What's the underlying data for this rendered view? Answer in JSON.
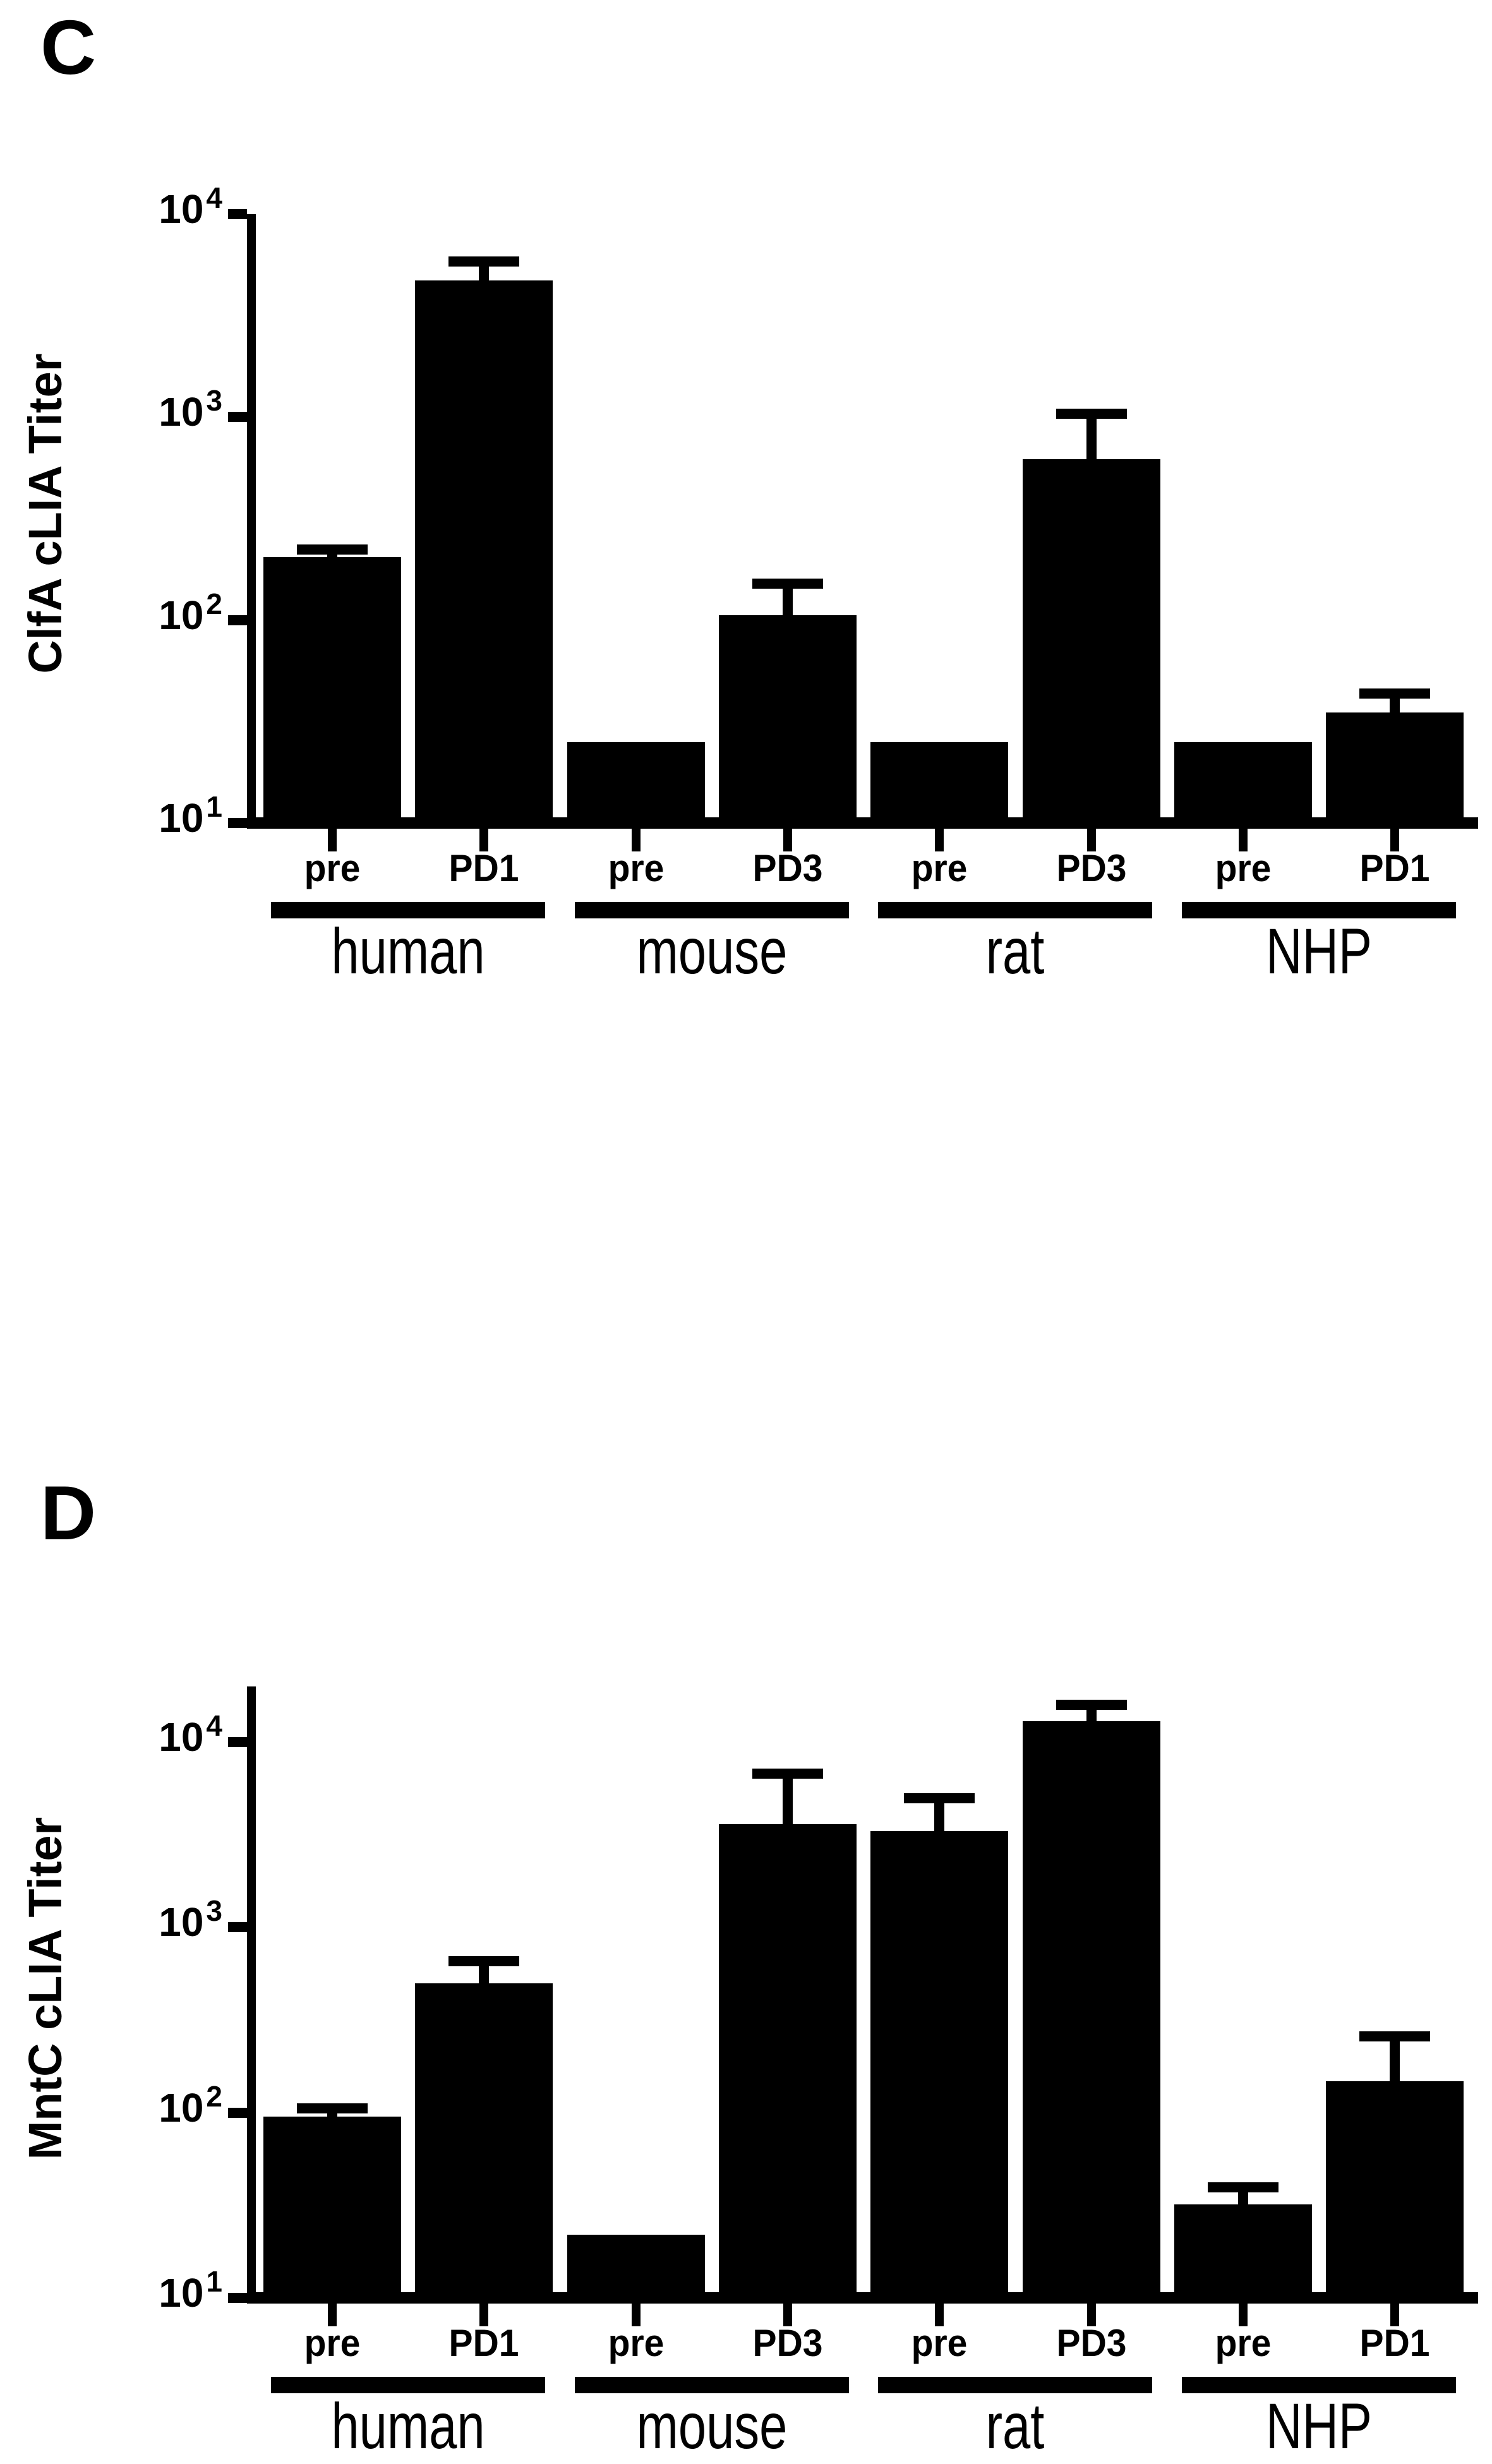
{
  "figure": {
    "description": "Two stacked log-scale bar charts of cLIA antibody titers with SD error bars"
  },
  "chart_data": [
    {
      "panel": "C",
      "letter": "C",
      "type": "bar",
      "title": "",
      "xlabel": "",
      "ylabel": "ClfA cLIA Titer",
      "yscale": "log",
      "ylim": [
        10,
        10000
      ],
      "axis_top": 10000,
      "grid": false,
      "legend": "none",
      "bar_color": "#000000",
      "yticks": [
        {
          "text": "10",
          "exp": "1",
          "value": 10
        },
        {
          "text": "10",
          "exp": "2",
          "value": 100
        },
        {
          "text": "10",
          "exp": "3",
          "value": 1000
        },
        {
          "text": "10",
          "exp": "4",
          "value": 10000
        }
      ],
      "groups": [
        {
          "label": "human",
          "bars": [
            {
              "condition": "pre",
              "value": 205,
              "error_top": 235
            },
            {
              "condition": "PD1",
              "value": 4700,
              "error_top": 6200
            }
          ]
        },
        {
          "label": "mouse",
          "bars": [
            {
              "condition": "pre",
              "value": 25,
              "error_top": null
            },
            {
              "condition": "PD3",
              "value": 106,
              "error_top": 160
            }
          ]
        },
        {
          "label": "rat",
          "bars": [
            {
              "condition": "pre",
              "value": 25,
              "error_top": null
            },
            {
              "condition": "PD3",
              "value": 620,
              "error_top": 1100
            }
          ]
        },
        {
          "label": "NHP",
          "bars": [
            {
              "condition": "pre",
              "value": 25,
              "error_top": null
            },
            {
              "condition": "PD1",
              "value": 35,
              "error_top": 46
            }
          ]
        }
      ]
    },
    {
      "panel": "D",
      "letter": "D",
      "type": "bar",
      "title": "",
      "xlabel": "",
      "ylabel": "MntC cLIA Titer",
      "yscale": "log",
      "ylim": [
        10,
        20000
      ],
      "axis_top": 20000,
      "grid": false,
      "legend": "none",
      "bar_color": "#000000",
      "yticks": [
        {
          "text": "10",
          "exp": "1",
          "value": 10
        },
        {
          "text": "10",
          "exp": "2",
          "value": 100
        },
        {
          "text": "10",
          "exp": "3",
          "value": 1000
        },
        {
          "text": "10",
          "exp": "4",
          "value": 10000
        }
      ],
      "groups": [
        {
          "label": "human",
          "bars": [
            {
              "condition": "pre",
              "value": 95,
              "error_top": 112
            },
            {
              "condition": "PD1",
              "value": 500,
              "error_top": 700
            }
          ]
        },
        {
          "label": "mouse",
          "bars": [
            {
              "condition": "pre",
              "value": 22,
              "error_top": null
            },
            {
              "condition": "PD3",
              "value": 3600,
              "error_top": 7200
            }
          ]
        },
        {
          "label": "rat",
          "bars": [
            {
              "condition": "pre",
              "value": 3300,
              "error_top": 5300
            },
            {
              "condition": "PD3",
              "value": 13000,
              "error_top": 17000
            }
          ]
        },
        {
          "label": "NHP",
          "bars": [
            {
              "condition": "pre",
              "value": 32,
              "error_top": 42
            },
            {
              "condition": "PD1",
              "value": 148,
              "error_top": 275
            }
          ]
        }
      ]
    }
  ]
}
